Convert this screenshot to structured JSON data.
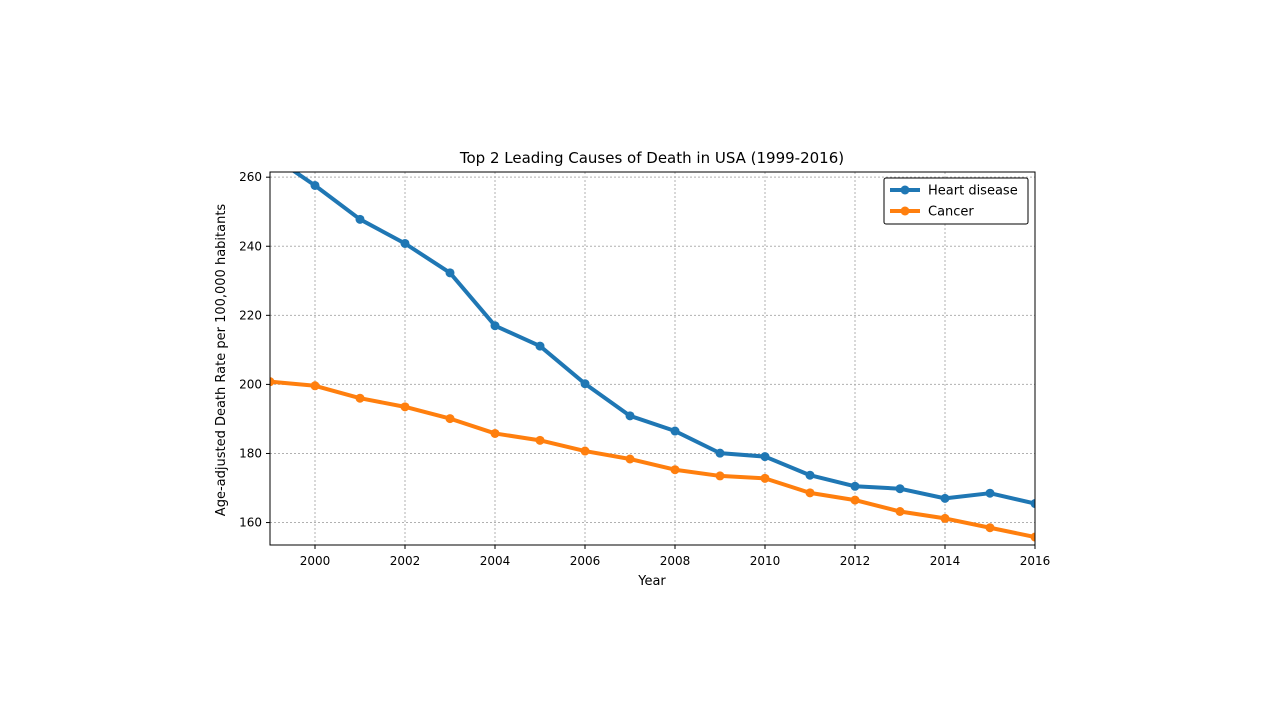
{
  "chart_data": {
    "type": "line",
    "title": "Top 2 Leading Causes of Death in USA (1999-2016)",
    "xlabel": "Year",
    "ylabel": "Age-adjusted Death Rate per 100,000 habitants",
    "xlim": [
      1999,
      2016
    ],
    "ylim": [
      153.5,
      261.5
    ],
    "x_ticks": [
      2000,
      2002,
      2004,
      2006,
      2008,
      2010,
      2012,
      2014,
      2016
    ],
    "y_ticks": [
      160,
      180,
      200,
      220,
      240,
      260
    ],
    "grid": true,
    "legend_position": "top-right",
    "x": [
      1999,
      2000,
      2001,
      2002,
      2003,
      2004,
      2005,
      2006,
      2007,
      2008,
      2009,
      2010,
      2011,
      2012,
      2013,
      2014,
      2015,
      2016
    ],
    "series": [
      {
        "name": "Heart disease",
        "color": "#1f77b4",
        "values": [
          266.5,
          257.6,
          247.8,
          240.8,
          232.3,
          217.0,
          211.1,
          200.2,
          190.9,
          186.5,
          180.1,
          179.1,
          173.7,
          170.5,
          169.8,
          167.0,
          168.5,
          165.5
        ]
      },
      {
        "name": "Cancer",
        "color": "#ff7f0e",
        "values": [
          200.8,
          199.6,
          196.0,
          193.5,
          190.1,
          185.8,
          183.8,
          180.7,
          178.4,
          175.3,
          173.5,
          172.8,
          168.6,
          166.5,
          163.2,
          161.2,
          158.5,
          155.8
        ]
      }
    ]
  }
}
